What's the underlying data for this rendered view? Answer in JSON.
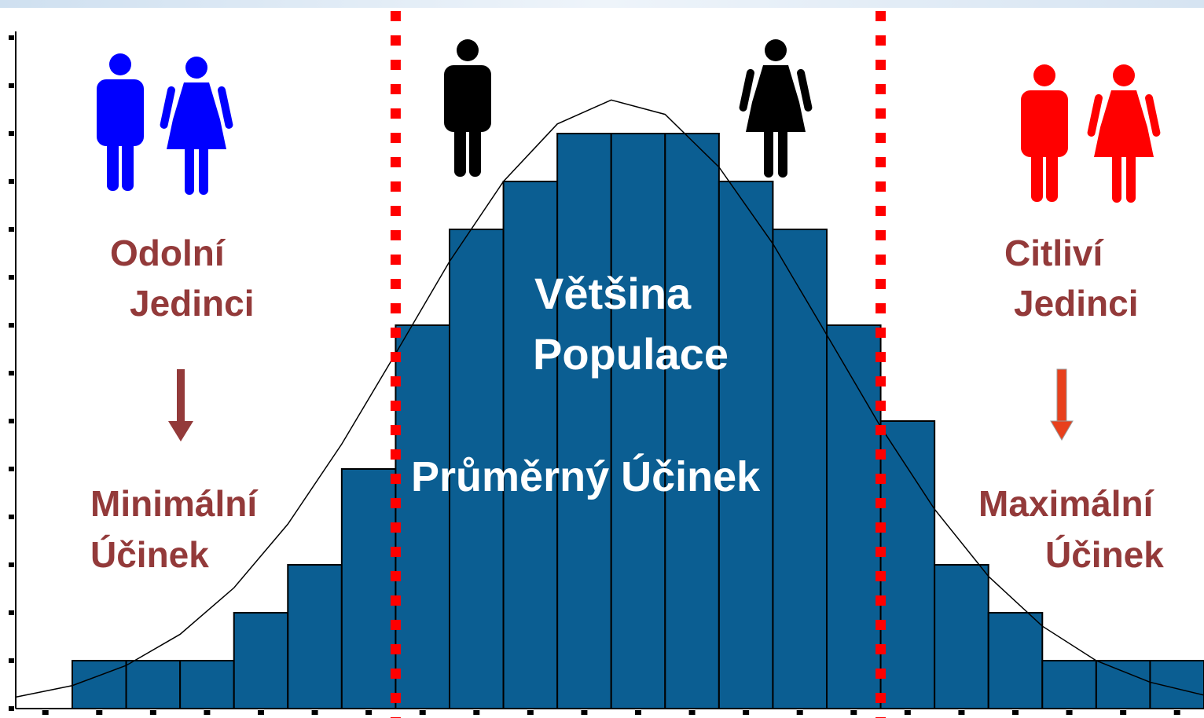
{
  "chart_data": {
    "type": "histogram",
    "bins": [
      0,
      1,
      2,
      3,
      4,
      5,
      6,
      7,
      8,
      9,
      10,
      11,
      12,
      13,
      14,
      15,
      16,
      17,
      18,
      19,
      20,
      21
    ],
    "values": [
      1,
      1,
      1,
      2,
      3,
      5,
      8,
      10,
      11,
      12,
      12,
      12,
      11,
      10,
      8,
      6,
      3,
      2,
      1,
      1,
      1
    ],
    "color": "#0b5e92",
    "curve": {
      "x": [
        -1.05,
        0,
        1,
        2,
        3,
        4,
        5,
        6,
        7,
        8,
        9,
        10,
        11,
        12,
        13,
        14,
        15,
        16,
        17,
        18,
        19,
        20,
        21
      ],
      "values": [
        0.24,
        0.48,
        0.9,
        1.55,
        2.52,
        3.85,
        5.52,
        7.41,
        9.33,
        11.0,
        12.2,
        12.7,
        12.4,
        11.3,
        9.7,
        7.8,
        5.88,
        4.16,
        2.76,
        1.72,
        1.0,
        0.55,
        0.28
      ],
      "color": "#000000"
    },
    "thresholds": [
      6,
      15
    ],
    "threshold_color": "#ff0000",
    "xlim": [
      -1.05,
      21
    ],
    "ylim": [
      0,
      14.7
    ],
    "xticks": [
      -0.5,
      0.5,
      1.5,
      2.5,
      3.5,
      4.5,
      5.5,
      6.5,
      7.5,
      8.5,
      9.5,
      10.5,
      11.5,
      12.5,
      13.5,
      14.5,
      15.5,
      16.5,
      17.5,
      18.5,
      19.5,
      20.5
    ],
    "yticks": [
      0,
      1,
      2,
      3,
      4,
      5,
      6,
      7,
      8,
      9,
      10,
      11,
      12,
      13,
      14
    ],
    "annotations": [
      {
        "text": "Odolní",
        "color": "#933a3a"
      },
      {
        "text": "Jedinci",
        "color": "#933a3a"
      },
      {
        "text": "Minimální",
        "color": "#933a3a"
      },
      {
        "text": "Účinek",
        "color": "#933a3a"
      },
      {
        "text": "Citliví",
        "color": "#933a3a"
      },
      {
        "text": "Jedinci",
        "color": "#933a3a"
      },
      {
        "text": "Maximální",
        "color": "#933a3a"
      },
      {
        "text": "Účinek",
        "color": "#933a3a"
      },
      {
        "text": "Většina",
        "color": "#ffffff"
      },
      {
        "text": "Populace",
        "color": "#ffffff"
      },
      {
        "text": "Průměrný Účinek",
        "color": "#ffffff"
      }
    ]
  }
}
